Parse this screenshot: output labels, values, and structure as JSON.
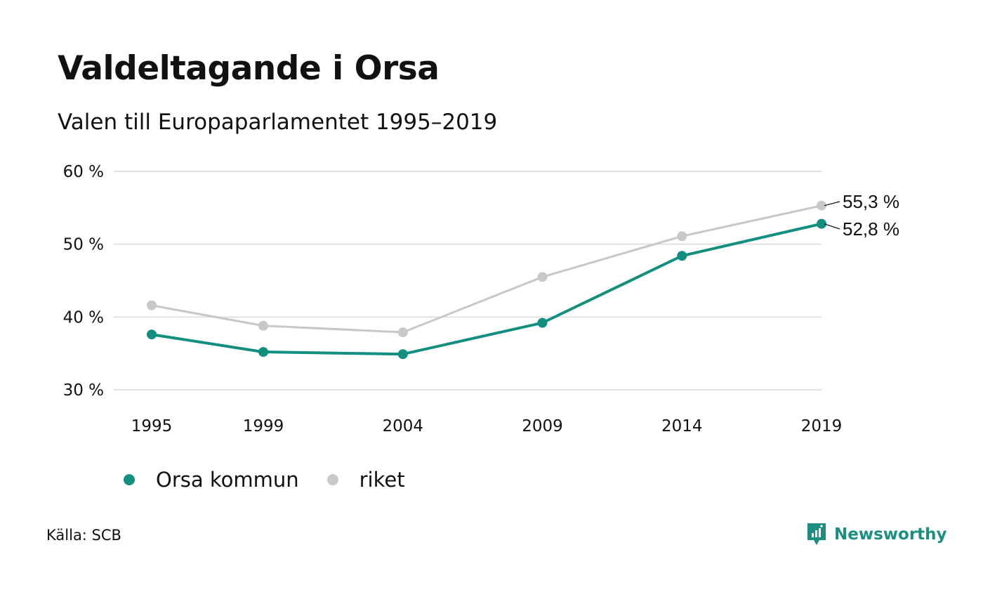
{
  "title": "Valdeltagande i Orsa",
  "subtitle": "Valen till Europaparlamentet 1995–2019",
  "source": "Källa: SCB",
  "brand": "Newsworthy",
  "colors": {
    "orsa": "#138f80",
    "riket": "#c8c8c8",
    "grid": "#e2e2e2",
    "brand": "#1d8f80"
  },
  "chart_data": {
    "type": "line",
    "title": "Valdeltagande i Orsa",
    "subtitle": "Valen till Europaparlamentet 1995–2019",
    "x": [
      "1995",
      "1999",
      "2004",
      "2009",
      "2014",
      "2019"
    ],
    "ylim": [
      30,
      60
    ],
    "yticks": [
      30,
      40,
      50,
      60
    ],
    "ytick_labels": [
      "30 %",
      "40 %",
      "50 %",
      "60 %"
    ],
    "grid": true,
    "legend_placement": "bottom-left",
    "series": [
      {
        "name": "Orsa kommun",
        "color": "#138f80",
        "values": [
          37.6,
          35.2,
          34.9,
          39.2,
          48.4,
          52.8
        ]
      },
      {
        "name": "riket",
        "color": "#c8c8c8",
        "values": [
          41.6,
          38.8,
          37.9,
          45.5,
          51.1,
          55.3
        ]
      }
    ],
    "end_labels": {
      "riket": "55,3 %",
      "orsa": "52,8 %"
    }
  }
}
